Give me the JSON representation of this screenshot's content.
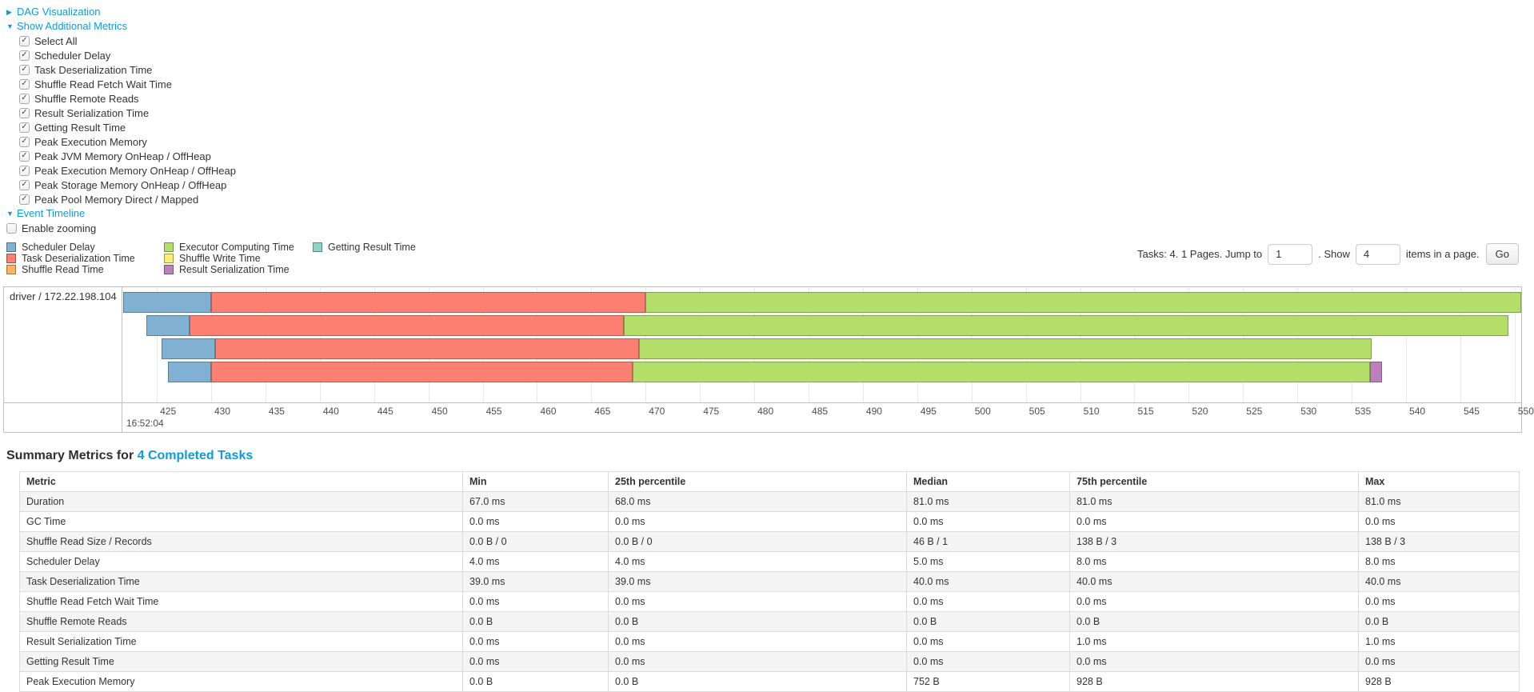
{
  "colors": {
    "link": "#0e9cd9",
    "grid": "#e8e8e8",
    "chart_border": "#bfbfbf"
  },
  "panels": {
    "dag_visualization": "DAG Visualization",
    "show_additional_metrics": "Show Additional Metrics",
    "event_timeline": "Event Timeline",
    "enable_zooming": "Enable zooming"
  },
  "metrics_checkboxes": [
    "Select All",
    "Scheduler Delay",
    "Task Deserialization Time",
    "Shuffle Read Fetch Wait Time",
    "Shuffle Remote Reads",
    "Result Serialization Time",
    "Getting Result Time",
    "Peak Execution Memory",
    "Peak JVM Memory OnHeap / OffHeap",
    "Peak Execution Memory OnHeap / OffHeap",
    "Peak Storage Memory OnHeap / OffHeap",
    "Peak Pool Memory Direct / Mapped"
  ],
  "legend_columns": [
    [
      {
        "label": "Scheduler Delay",
        "color": "#80B1D3"
      },
      {
        "label": "Task Deserialization Time",
        "color": "#FB8072"
      },
      {
        "label": "Shuffle Read Time",
        "color": "#FDB462"
      }
    ],
    [
      {
        "label": "Executor Computing Time",
        "color": "#B3DE69"
      },
      {
        "label": "Shuffle Write Time",
        "color": "#FFED6F"
      },
      {
        "label": "Result Serialization Time",
        "color": "#BC80BD"
      }
    ],
    [
      {
        "label": "Getting Result Time",
        "color": "#8DD3C7"
      }
    ]
  ],
  "pagination": {
    "prefix": "Tasks: 4. 1 Pages. Jump to",
    "jump_value": "1",
    "mid": ". Show",
    "show_value": "4",
    "suffix": "items in a page.",
    "go_label": "Go"
  },
  "chart_data": {
    "type": "timeline",
    "row_label": "driver / 172.22.198.104",
    "axis": {
      "min": 421.9,
      "max": 550.6,
      "unit": "ms within second",
      "ticks": [
        425,
        430,
        435,
        440,
        445,
        450,
        455,
        460,
        465,
        470,
        475,
        480,
        485,
        490,
        495,
        500,
        505,
        510,
        515,
        520,
        525,
        530,
        535,
        540,
        545,
        550
      ],
      "sub_label": "16:52:04"
    },
    "colors": {
      "scheduler-delay": "#80B1D3",
      "task-deserialization": "#FB8072",
      "shuffle-read": "#FDB462",
      "executor-computing": "#B3DE69",
      "shuffle-write": "#FFED6F",
      "result-serialization": "#BC80BD",
      "getting-result": "#8DD3C7"
    },
    "bars": [
      [
        {
          "type": "scheduler-delay",
          "from": 421.9,
          "to": 430.0
        },
        {
          "type": "task-deserialization",
          "from": 430.0,
          "to": 470.0
        },
        {
          "type": "executor-computing",
          "from": 470.0,
          "to": 550.6
        }
      ],
      [
        {
          "type": "scheduler-delay",
          "from": 424.0,
          "to": 428.0
        },
        {
          "type": "task-deserialization",
          "from": 428.0,
          "to": 468.0
        },
        {
          "type": "executor-computing",
          "from": 468.0,
          "to": 549.4
        }
      ],
      [
        {
          "type": "scheduler-delay",
          "from": 425.4,
          "to": 430.4
        },
        {
          "type": "task-deserialization",
          "from": 430.4,
          "to": 469.4
        },
        {
          "type": "executor-computing",
          "from": 469.4,
          "to": 536.8
        }
      ],
      [
        {
          "type": "scheduler-delay",
          "from": 426.0,
          "to": 430.0
        },
        {
          "type": "task-deserialization",
          "from": 430.0,
          "to": 468.8
        },
        {
          "type": "executor-computing",
          "from": 468.8,
          "to": 536.7
        },
        {
          "type": "result-serialization",
          "from": 536.7,
          "to": 537.8
        }
      ]
    ]
  },
  "summary": {
    "title_prefix": "Summary Metrics for",
    "title_link": "4 Completed Tasks",
    "columns": [
      "Metric",
      "Min",
      "25th percentile",
      "Median",
      "75th percentile",
      "Max"
    ],
    "rows": [
      {
        "metric": "Duration",
        "values": [
          "67.0 ms",
          "68.0 ms",
          "81.0 ms",
          "81.0 ms",
          "81.0 ms"
        ]
      },
      {
        "metric": "GC Time",
        "values": [
          "0.0 ms",
          "0.0 ms",
          "0.0 ms",
          "0.0 ms",
          "0.0 ms"
        ]
      },
      {
        "metric": "Shuffle Read Size / Records",
        "values": [
          "0.0 B / 0",
          "0.0 B / 0",
          "46 B / 1",
          "138 B / 3",
          "138 B / 3"
        ]
      },
      {
        "metric": "Scheduler Delay",
        "values": [
          "4.0 ms",
          "4.0 ms",
          "5.0 ms",
          "8.0 ms",
          "8.0 ms"
        ]
      },
      {
        "metric": "Task Deserialization Time",
        "values": [
          "39.0 ms",
          "39.0 ms",
          "40.0 ms",
          "40.0 ms",
          "40.0 ms"
        ]
      },
      {
        "metric": "Shuffle Read Fetch Wait Time",
        "values": [
          "0.0 ms",
          "0.0 ms",
          "0.0 ms",
          "0.0 ms",
          "0.0 ms"
        ]
      },
      {
        "metric": "Shuffle Remote Reads",
        "values": [
          "0.0 B",
          "0.0 B",
          "0.0 B",
          "0.0 B",
          "0.0 B"
        ]
      },
      {
        "metric": "Result Serialization Time",
        "values": [
          "0.0 ms",
          "0.0 ms",
          "0.0 ms",
          "1.0 ms",
          "1.0 ms"
        ]
      },
      {
        "metric": "Getting Result Time",
        "values": [
          "0.0 ms",
          "0.0 ms",
          "0.0 ms",
          "0.0 ms",
          "0.0 ms"
        ]
      },
      {
        "metric": "Peak Execution Memory",
        "values": [
          "0.0 B",
          "0.0 B",
          "752 B",
          "928 B",
          "928 B"
        ]
      }
    ]
  }
}
